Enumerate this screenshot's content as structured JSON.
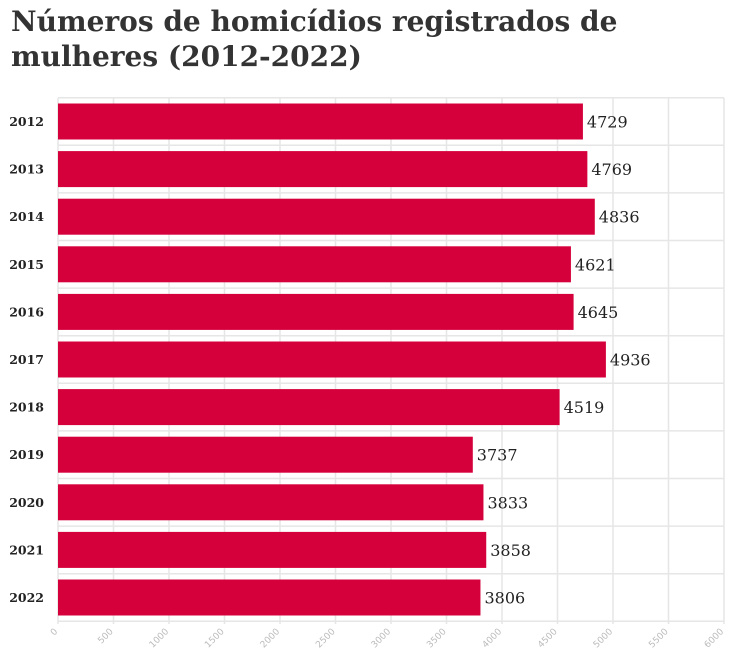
{
  "chart_data": {
    "type": "bar",
    "orientation": "horizontal",
    "title": "Números de homicídios registrados de mulheres (2012-2022)",
    "categories": [
      "2012",
      "2013",
      "2014",
      "2015",
      "2016",
      "2017",
      "2018",
      "2019",
      "2020",
      "2021",
      "2022"
    ],
    "values": [
      4729,
      4769,
      4836,
      4621,
      4645,
      4936,
      4519,
      3737,
      3833,
      3858,
      3806
    ],
    "xlim": [
      0,
      6000
    ],
    "x_ticks": [
      "0",
      "500",
      "1000",
      "1500",
      "2000",
      "2500",
      "3000",
      "3500",
      "4000",
      "4500",
      "5000",
      "5500",
      "6000"
    ],
    "grid": true,
    "legend": "none",
    "bar_color": "#d5003b",
    "xlabel": "",
    "ylabel": ""
  }
}
